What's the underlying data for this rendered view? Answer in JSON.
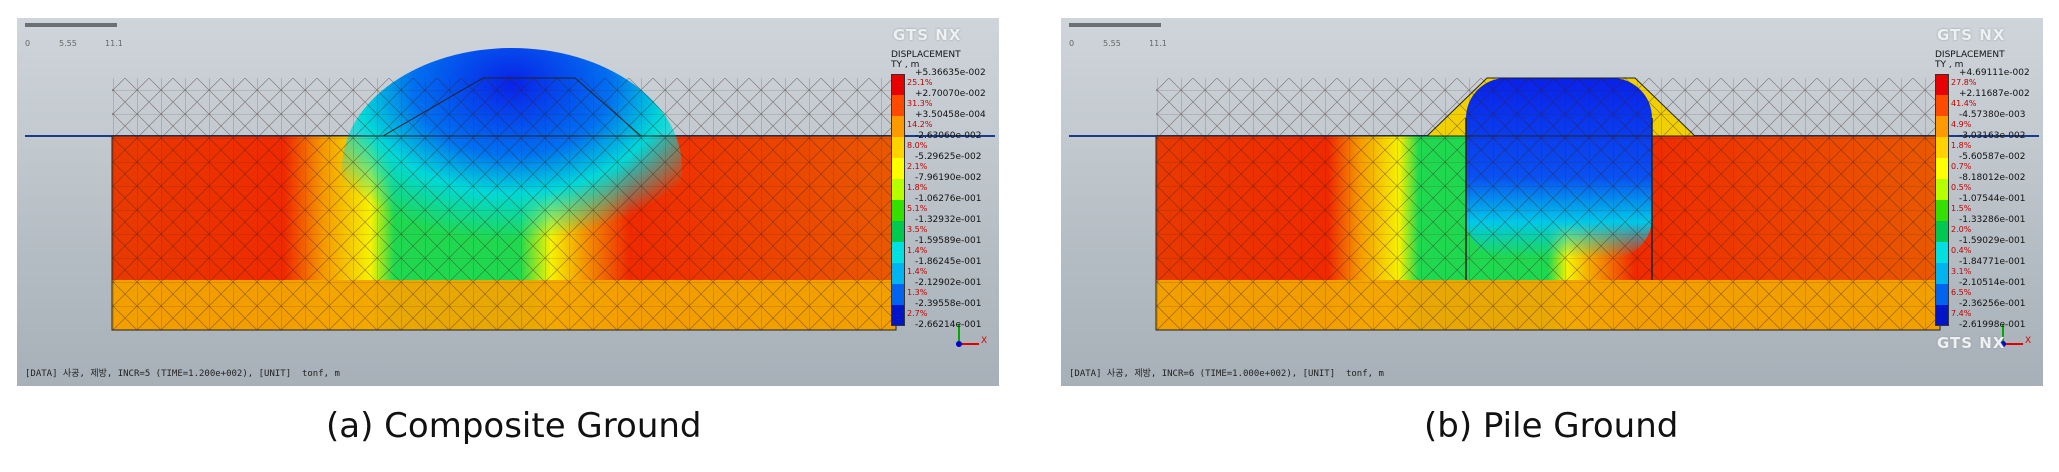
{
  "panels": [
    {
      "id": "a",
      "brand": "GTS NX",
      "scale_labels": [
        "0",
        "5.55",
        "11.1"
      ],
      "legend_title_1": "DISPLACEMENT",
      "legend_title_2": "TY , m",
      "legend_values": [
        "+5.36635e-002",
        "+2.70070e-002",
        "+3.50458e-004",
        "-2.63060e-002",
        "-5.29625e-002",
        "-7.96190e-002",
        "-1.06276e-001",
        "-1.32932e-001",
        "-1.59589e-001",
        "-1.86245e-001",
        "-2.12902e-001",
        "-2.39558e-001",
        "-2.66214e-001"
      ],
      "legend_percents": [
        "25.1%",
        "31.3%",
        "14.2%",
        "8.0%",
        "2.1%",
        "1.8%",
        "5.1%",
        "3.5%",
        "1.4%",
        "1.4%",
        "1.3%",
        "2.7%"
      ],
      "status": "[DATA] 사공, 제방, INCR=5 (TIME=1.200e+002), [UNIT]  tonf, m",
      "caption": "(a) Composite Ground"
    },
    {
      "id": "b",
      "brand": "GTS NX",
      "scale_labels": [
        "0",
        "5.55",
        "11.1"
      ],
      "legend_title_1": "DISPLACEMENT",
      "legend_title_2": "TY , m",
      "legend_values": [
        "+4.69111e-002",
        "+2.11687e-002",
        "-4.57380e-003",
        "-3.03163e-002",
        "-5.60587e-002",
        "-8.18012e-002",
        "-1.07544e-001",
        "-1.33286e-001",
        "-1.59029e-001",
        "-1.84771e-001",
        "-2.10514e-001",
        "-2.36256e-001",
        "-2.61998e-001"
      ],
      "legend_percents": [
        "27.8%",
        "41.4%",
        "4.9%",
        "1.8%",
        "0.7%",
        "0.5%",
        "1.5%",
        "2.0%",
        "0.4%",
        "3.1%",
        "6.5%",
        "7.4%"
      ],
      "status": "[DATA] 사공, 제방, INCR=6 (TIME=1.000e+002), [UNIT]  tonf, m",
      "caption": "(b) Pile Ground"
    }
  ],
  "legend_colors": [
    "#e60000",
    "#ff4a00",
    "#ff9900",
    "#ffd200",
    "#ffff00",
    "#b6ff00",
    "#33e000",
    "#00c850",
    "#00e0e0",
    "#00b4f0",
    "#0064f0",
    "#0014c8"
  ],
  "axis_labels": {
    "x": "X",
    "y": "Y"
  }
}
